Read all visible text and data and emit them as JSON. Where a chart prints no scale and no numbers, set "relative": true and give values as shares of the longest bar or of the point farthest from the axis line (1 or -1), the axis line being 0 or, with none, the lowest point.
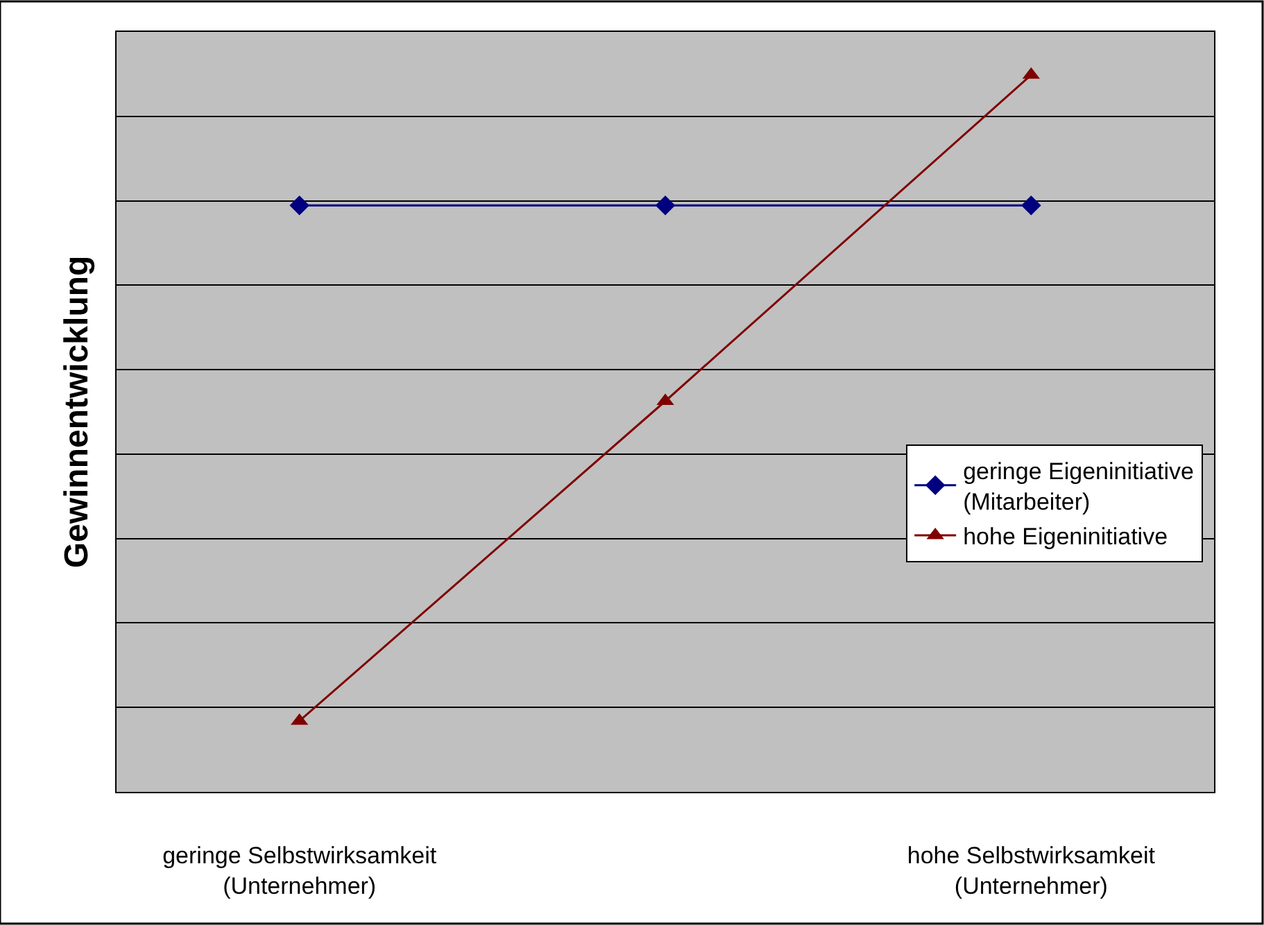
{
  "chart_data": {
    "type": "line",
    "relative": true,
    "ylabel": "Gewinnentwicklung",
    "categories": [
      "geringe Selbstwirksamkeit\n(Unternehmer)",
      null,
      "hohe Selbstwirksamkeit\n(Unternehmer)"
    ],
    "series": [
      {
        "name": "geringe Eigeninitiative\n(Mitarbeiter)",
        "color": "#000080",
        "marker": "diamond",
        "values": [
          0.818,
          0.818,
          0.818
        ]
      },
      {
        "name": "hohe Eigeninitiative",
        "color": "#800000",
        "marker": "triangle",
        "values": [
          0.099,
          0.545,
          1
        ]
      }
    ],
    "grid": "y",
    "legend": "right"
  }
}
